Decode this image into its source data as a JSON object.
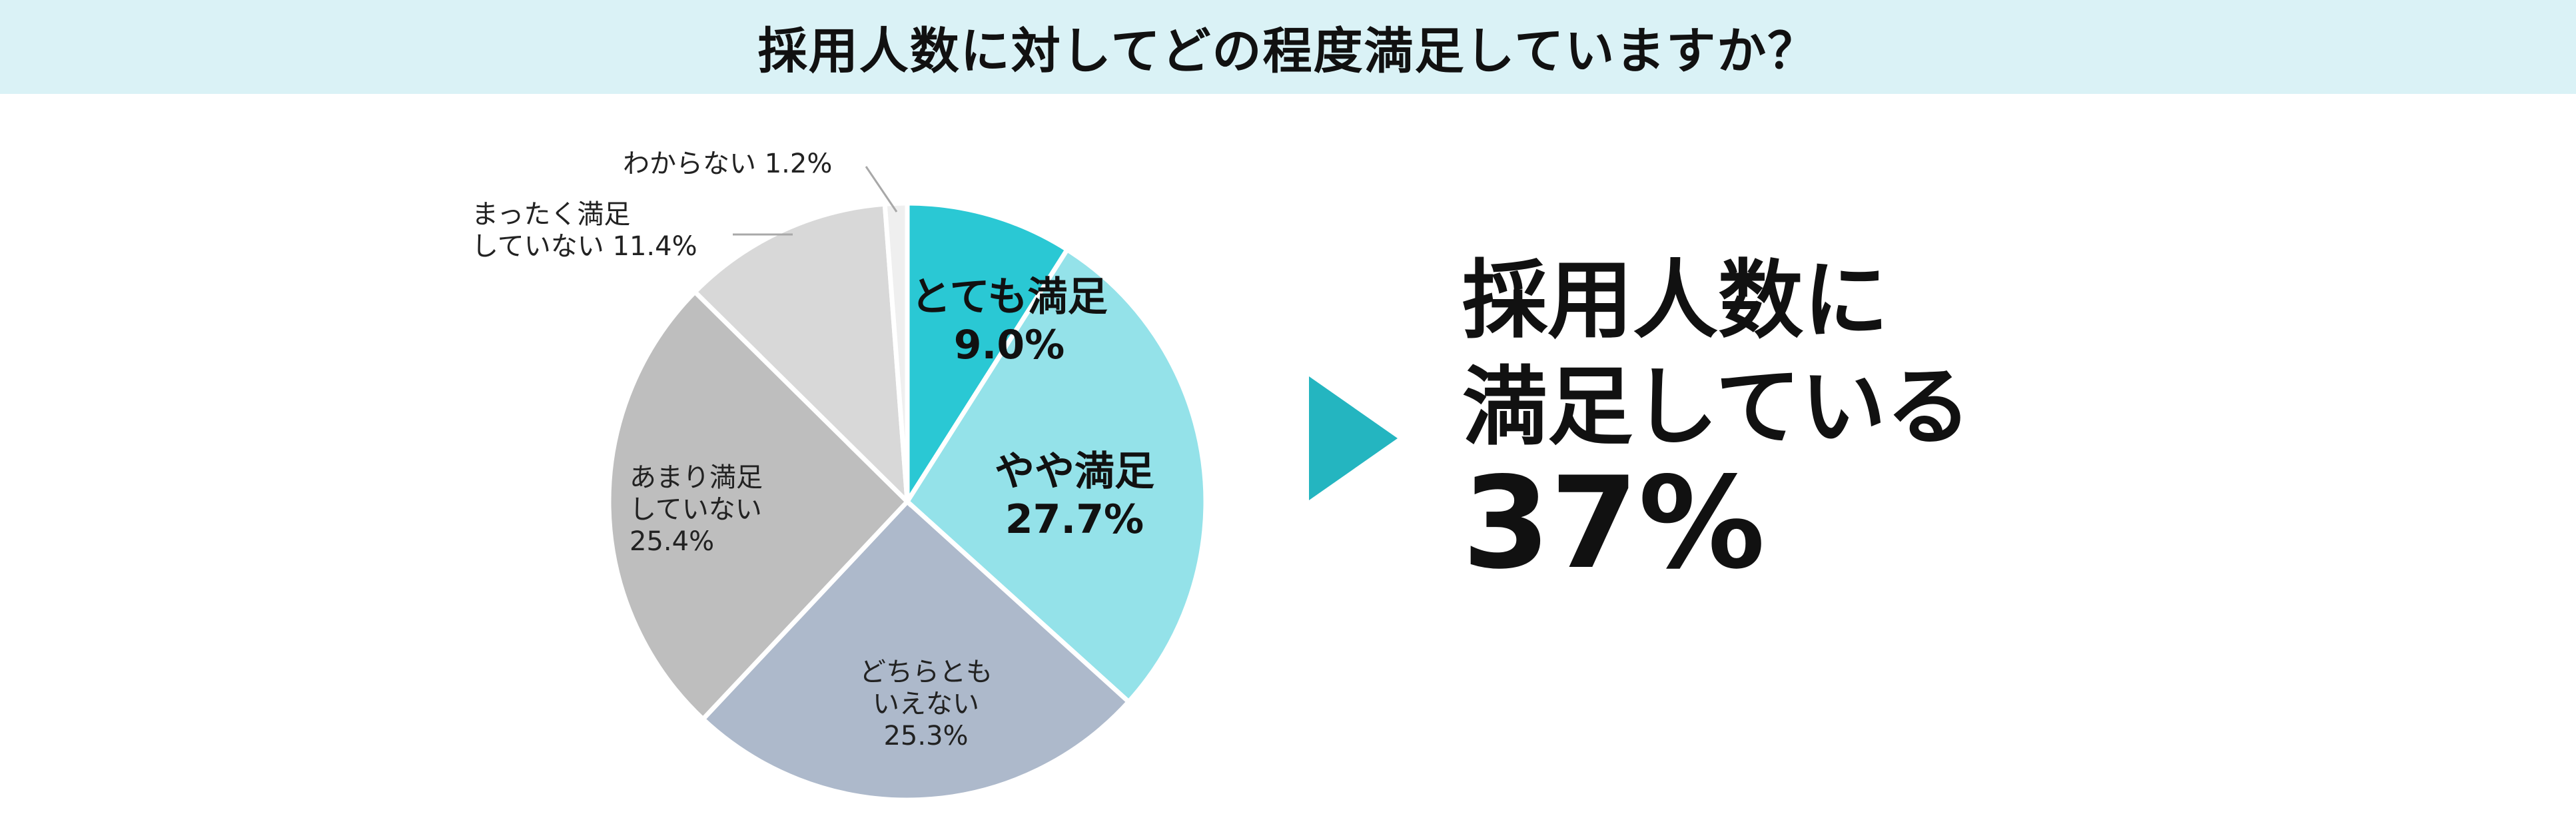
{
  "title": "採用人数に対してどの程度満足していますか？",
  "chart_data": {
    "type": "pie",
    "start_angle_deg": 0,
    "direction": "clockwise",
    "slices": [
      {
        "name": "とても満足",
        "value": 9.0,
        "value_label": "9.0%",
        "color": "#2ac8d4",
        "label_lines": [
          "とても満足",
          "9.0%"
        ]
      },
      {
        "name": "やや満足",
        "value": 27.7,
        "value_label": "27.7%",
        "color": "#94e2e9",
        "label_lines": [
          "やや満足",
          "27.7%"
        ]
      },
      {
        "name": "どちらともいえない",
        "value": 25.3,
        "value_label": "25.3%",
        "color": "#adb9cb",
        "label_lines": [
          "どちらとも",
          "いえない",
          "25.3%"
        ]
      },
      {
        "name": "あまり満足していない",
        "value": 25.4,
        "value_label": "25.4%",
        "color": "#bebebe",
        "label_lines": [
          "あまり満足",
          "していない",
          "25.4%"
        ]
      },
      {
        "name": "まったく満足していない",
        "value": 11.4,
        "value_label": "11.4%",
        "color": "#d8d8d8",
        "label_lines": [
          "まったく満足",
          "していない 11.4%"
        ]
      },
      {
        "name": "わからない",
        "value": 1.2,
        "value_label": "1.2%",
        "color": "#efefef",
        "label_lines": [
          "わからない 1.2%"
        ]
      }
    ],
    "legend": "none"
  },
  "summary": {
    "line1": "採用人数に",
    "line2": "満足している",
    "percent": "37%"
  }
}
